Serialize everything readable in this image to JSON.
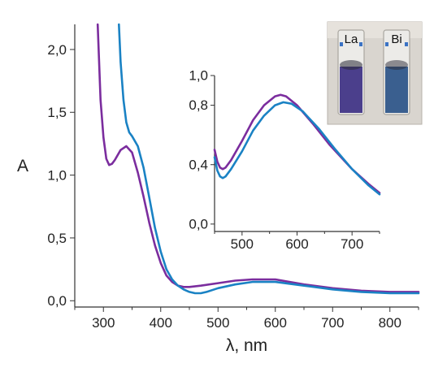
{
  "chart_data": [
    {
      "type": "line",
      "panel": "main",
      "xlabel": "λ, nm",
      "ylabel": "A",
      "xlim": [
        250,
        850
      ],
      "ylim": [
        -0.05,
        2.2
      ],
      "xticks": [
        300,
        400,
        500,
        600,
        700,
        800
      ],
      "xtick_labels": [
        "300",
        "400",
        "500",
        "600",
        "700",
        "800"
      ],
      "yticks": [
        0.0,
        0.5,
        1.0,
        1.5,
        2.0
      ],
      "ytick_labels": [
        "0,0",
        "0,5",
        "1,0",
        "1,5",
        "2,0"
      ],
      "grid": false,
      "series": [
        {
          "key": "La",
          "color": "#7b2d9e",
          "x": [
            290,
            295,
            300,
            305,
            310,
            315,
            320,
            330,
            340,
            350,
            360,
            370,
            380,
            390,
            400,
            410,
            420,
            430,
            440,
            450,
            470,
            500,
            530,
            560,
            600,
            650,
            700,
            750,
            800,
            850
          ],
          "y": [
            2.2,
            1.6,
            1.3,
            1.13,
            1.08,
            1.09,
            1.12,
            1.2,
            1.23,
            1.18,
            1.02,
            0.83,
            0.62,
            0.44,
            0.3,
            0.2,
            0.15,
            0.12,
            0.11,
            0.11,
            0.12,
            0.14,
            0.16,
            0.17,
            0.17,
            0.13,
            0.1,
            0.08,
            0.07,
            0.07
          ]
        },
        {
          "key": "Bi",
          "color": "#1a82c4",
          "x": [
            327,
            330,
            335,
            340,
            345,
            350,
            360,
            370,
            380,
            390,
            400,
            410,
            420,
            430,
            440,
            450,
            460,
            470,
            480,
            500,
            530,
            560,
            600,
            650,
            700,
            750,
            800,
            850
          ],
          "y": [
            2.2,
            1.9,
            1.6,
            1.42,
            1.34,
            1.31,
            1.23,
            1.06,
            0.82,
            0.58,
            0.39,
            0.25,
            0.17,
            0.12,
            0.09,
            0.07,
            0.06,
            0.06,
            0.07,
            0.1,
            0.13,
            0.15,
            0.15,
            0.12,
            0.09,
            0.07,
            0.06,
            0.06
          ]
        }
      ]
    },
    {
      "type": "line",
      "panel": "inset",
      "xlabel": "",
      "ylabel": "",
      "xlim": [
        450,
        750
      ],
      "ylim": [
        -0.05,
        1.0
      ],
      "xticks": [
        500,
        600,
        700
      ],
      "xtick_labels": [
        "500",
        "600",
        "700"
      ],
      "yticks": [
        0.0,
        0.4,
        0.8,
        1.0
      ],
      "ytick_labels": [
        "0,0",
        "0,4",
        "0,8",
        "1,0"
      ],
      "grid": false,
      "series": [
        {
          "key": "La",
          "color": "#7b2d9e",
          "x": [
            450,
            455,
            460,
            465,
            470,
            480,
            500,
            520,
            540,
            560,
            570,
            580,
            600,
            630,
            660,
            700,
            730,
            750
          ],
          "y": [
            0.5,
            0.42,
            0.38,
            0.37,
            0.38,
            0.43,
            0.56,
            0.7,
            0.8,
            0.86,
            0.87,
            0.86,
            0.8,
            0.67,
            0.53,
            0.37,
            0.27,
            0.21
          ]
        },
        {
          "key": "Bi",
          "color": "#1a82c4",
          "x": [
            450,
            455,
            460,
            465,
            470,
            480,
            500,
            520,
            540,
            560,
            575,
            590,
            610,
            640,
            670,
            700,
            730,
            750
          ],
          "y": [
            0.45,
            0.36,
            0.32,
            0.31,
            0.32,
            0.37,
            0.49,
            0.63,
            0.73,
            0.8,
            0.82,
            0.81,
            0.76,
            0.64,
            0.5,
            0.37,
            0.26,
            0.2
          ]
        }
      ]
    }
  ],
  "photo": {
    "left_cuvette_label": "La",
    "right_cuvette_label": "Bi",
    "left_solution_color": "#4b3f8c",
    "right_solution_color": "#3a5f8f"
  }
}
